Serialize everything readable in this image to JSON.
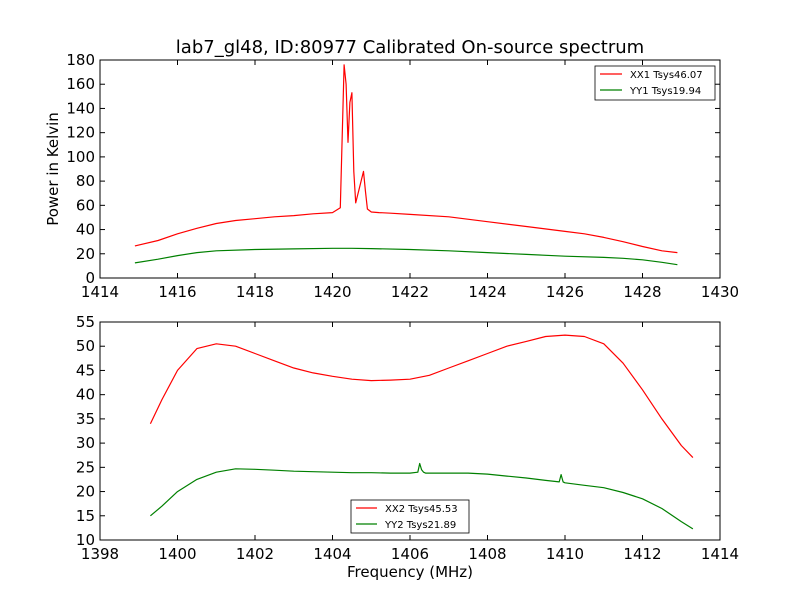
{
  "chart_data": [
    {
      "type": "line",
      "title": "lab7_gl48, ID:80977 Calibrated On-source spectrum",
      "xlabel": "",
      "ylabel": "Power in Kelvin",
      "xlim": [
        1414,
        1430
      ],
      "ylim": [
        0,
        180
      ],
      "xticks": [
        "1414",
        "1416",
        "1418",
        "1420",
        "1422",
        "1424",
        "1426",
        "1428",
        "1430"
      ],
      "yticks": [
        "0",
        "20",
        "40",
        "60",
        "80",
        "100",
        "120",
        "140",
        "160",
        "180"
      ],
      "grid": false,
      "legend_position": "top-right",
      "series": [
        {
          "name": "XX1 Tsys46.07",
          "color": "#ff0000",
          "x": [
            1414.9,
            1415.5,
            1416.0,
            1416.5,
            1417.0,
            1417.5,
            1418.0,
            1418.5,
            1419.0,
            1419.5,
            1420.0,
            1420.2,
            1420.3,
            1420.35,
            1420.4,
            1420.45,
            1420.5,
            1420.55,
            1420.6,
            1420.7,
            1420.8,
            1420.85,
            1420.9,
            1421.0,
            1421.2,
            1421.5,
            1422.0,
            1423.0,
            1424.0,
            1425.0,
            1426.0,
            1426.5,
            1427.0,
            1427.5,
            1428.0,
            1428.5,
            1428.9
          ],
          "y": [
            26.5,
            31,
            36.5,
            41,
            45,
            47.5,
            49,
            50.5,
            51.5,
            53,
            54,
            58,
            176,
            160,
            112,
            145,
            153,
            88,
            62,
            75,
            88,
            72,
            57,
            54.5,
            54,
            53.5,
            52.5,
            50.5,
            46.5,
            42.5,
            38.5,
            36.5,
            33.5,
            30,
            26,
            22.5,
            21
          ]
        },
        {
          "name": "YY1 Tsys19.94",
          "color": "#008000",
          "x": [
            1414.9,
            1415.5,
            1416.0,
            1416.5,
            1417.0,
            1418.0,
            1419.0,
            1420.0,
            1420.5,
            1421.0,
            1422.0,
            1423.0,
            1424.0,
            1425.0,
            1426.0,
            1427.0,
            1427.5,
            1428.0,
            1428.5,
            1428.9
          ],
          "y": [
            12.5,
            15.5,
            18.5,
            21,
            22.5,
            23.5,
            24,
            24.5,
            24.5,
            24.3,
            23.5,
            22.5,
            21,
            19.5,
            18,
            17,
            16.3,
            15,
            13,
            11
          ]
        }
      ]
    },
    {
      "type": "line",
      "title": "",
      "xlabel": "Frequency (MHz)",
      "ylabel": "",
      "xlim": [
        1398,
        1414
      ],
      "ylim": [
        10,
        55
      ],
      "xticks": [
        "1398",
        "1400",
        "1402",
        "1404",
        "1406",
        "1408",
        "1410",
        "1412",
        "1414"
      ],
      "yticks": [
        "10",
        "15",
        "20",
        "25",
        "30",
        "35",
        "40",
        "45",
        "50",
        "55"
      ],
      "grid": false,
      "legend_position": "bottom-center",
      "series": [
        {
          "name": "XX2 Tsys45.53",
          "color": "#ff0000",
          "x": [
            1399.3,
            1399.6,
            1400.0,
            1400.5,
            1401.0,
            1401.5,
            1402.0,
            1402.5,
            1403.0,
            1403.5,
            1404.0,
            1404.5,
            1405.0,
            1405.5,
            1406.0,
            1406.5,
            1407.0,
            1407.5,
            1408.0,
            1408.5,
            1409.0,
            1409.5,
            1410.0,
            1410.5,
            1411.0,
            1411.5,
            1412.0,
            1412.5,
            1413.0,
            1413.3
          ],
          "y": [
            34,
            39,
            45,
            49.5,
            50.5,
            50,
            48.5,
            47,
            45.5,
            44.5,
            43.8,
            43.2,
            42.9,
            43,
            43.2,
            44,
            45.5,
            47,
            48.5,
            50,
            51,
            52,
            52.3,
            52,
            50.5,
            46.5,
            41,
            35,
            29.5,
            27
          ]
        },
        {
          "name": "YY2 Tsys21.89",
          "color": "#008000",
          "x": [
            1399.3,
            1399.6,
            1400.0,
            1400.5,
            1401.0,
            1401.5,
            1402.0,
            1402.5,
            1403.0,
            1403.5,
            1404.0,
            1404.5,
            1405.0,
            1405.5,
            1406.0,
            1406.2,
            1406.25,
            1406.3,
            1406.35,
            1406.4,
            1406.6,
            1407.0,
            1407.5,
            1408.0,
            1408.5,
            1409.0,
            1409.5,
            1409.85,
            1409.9,
            1409.95,
            1410.0,
            1410.5,
            1411.0,
            1411.5,
            1412.0,
            1412.5,
            1413.0,
            1413.3
          ],
          "y": [
            15,
            17,
            20,
            22.5,
            24,
            24.7,
            24.6,
            24.4,
            24.2,
            24.1,
            24.0,
            23.9,
            23.9,
            23.8,
            23.8,
            24,
            25.8,
            24.5,
            24,
            23.8,
            23.8,
            23.8,
            23.8,
            23.6,
            23.2,
            22.8,
            22.3,
            22,
            23.5,
            22,
            21.8,
            21.3,
            20.8,
            19.8,
            18.5,
            16.5,
            13.8,
            12.3
          ]
        }
      ]
    }
  ]
}
